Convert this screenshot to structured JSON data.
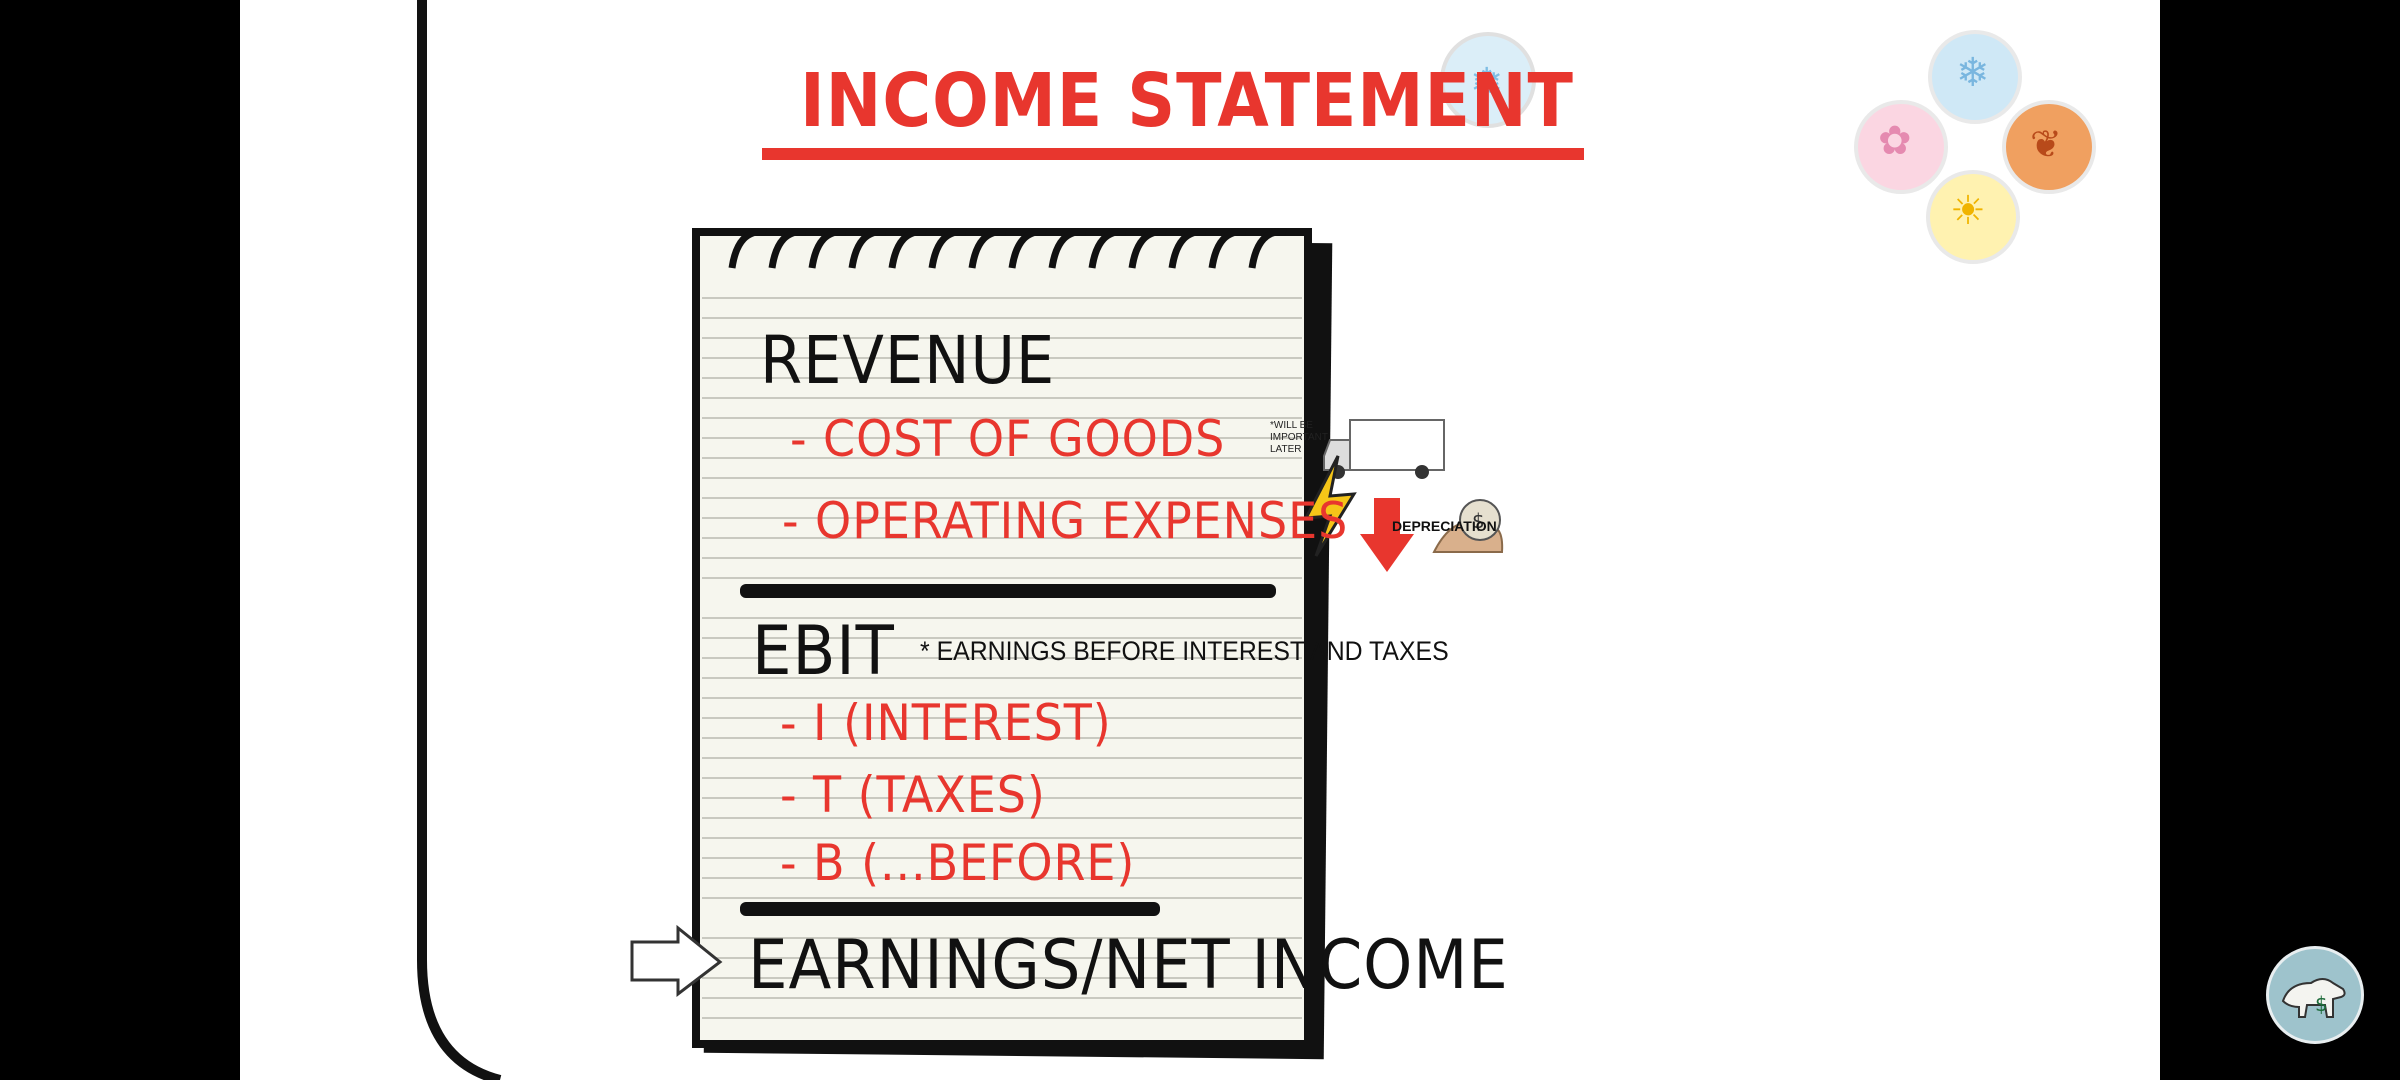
{
  "title": "INCOME STATEMENT",
  "notepad": {
    "revenue": "REVENUE",
    "cost_of_goods": "- COST OF GOODS",
    "cost_note": "*WILL BE IMPORTANT LATER",
    "operating_expenses": "- OPERATING EXPENSES",
    "depreciation": "DEPRECIATION",
    "ebit": "EBIT",
    "ebit_definition": "* EARNINGS BEFORE INTEREST AND TAXES",
    "interest": "- I (INTEREST)",
    "taxes": "- T (TAXES)",
    "before": "- B (...BEFORE)",
    "net_income": "EARNINGS/NET INCOME"
  },
  "icons": [
    "seasons-cycle-icon",
    "snowflake-icon",
    "leaf-icon",
    "sun-icon",
    "flower-icon",
    "lightning-icon",
    "delivery-truck-icon",
    "down-arrow-icon",
    "money-bag-hand-icon",
    "right-arrow-icon",
    "polar-bear-logo-icon"
  ],
  "colors": {
    "accent_red": "#e8362e",
    "ink": "#111111",
    "paper": "#f6f6ee",
    "frame_bg": "#000000"
  }
}
